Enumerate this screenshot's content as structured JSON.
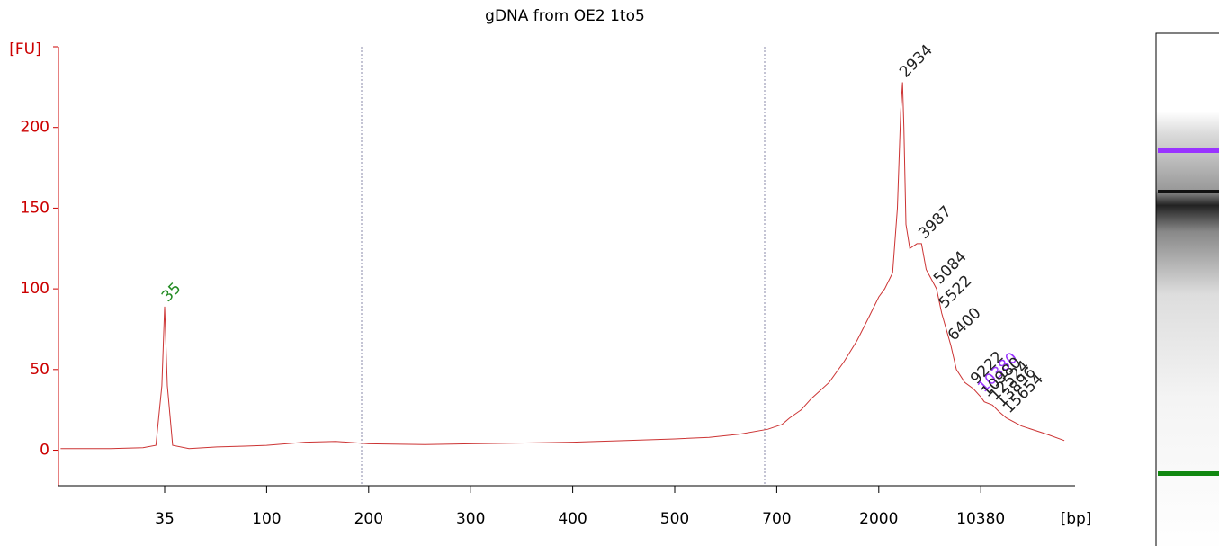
{
  "chart_data": {
    "type": "line",
    "title": "gDNA from OE2 1to5",
    "y_label": "[FU]",
    "x_label": "[bp]",
    "axis_color": "#cc0000",
    "xlim": [
      12,
      40000
    ],
    "ylim": [
      -22,
      250
    ],
    "xticks": [
      35,
      100,
      200,
      300,
      400,
      500,
      700,
      2000,
      10380
    ],
    "yticks": [
      0,
      50,
      100,
      150,
      200
    ],
    "series": [
      {
        "name": "gDNA from OE2 1to5",
        "color": "#cc3333",
        "x": [
          12,
          20,
          28,
          32,
          34,
          35,
          36,
          38,
          45,
          60,
          80,
          100,
          130,
          160,
          200,
          250,
          300,
          350,
          400,
          450,
          500,
          560,
          620,
          680,
          740,
          800,
          900,
          1000,
          1200,
          1400,
          1600,
          1800,
          2000,
          2200,
          2500,
          2700,
          2850,
          2934,
          3000,
          3100,
          3300,
          3700,
          3987,
          4300,
          5084,
          5522,
          6400,
          7000,
          8000,
          9222,
          10380,
          10980,
          12524,
          13896,
          15654,
          20000,
          30000,
          40000
        ],
        "values": [
          1,
          1,
          1.5,
          3,
          40,
          89,
          40,
          3,
          1,
          2,
          2.5,
          3,
          5,
          5.5,
          4,
          3.5,
          4,
          4.5,
          5,
          6,
          7,
          8,
          10,
          13,
          16,
          20,
          25,
          32,
          42,
          55,
          68,
          82,
          95,
          100,
          110,
          150,
          210,
          228,
          200,
          140,
          125,
          128,
          128,
          112,
          100,
          85,
          65,
          50,
          42,
          38,
          33,
          30,
          28,
          24,
          20,
          15,
          10,
          6
        ]
      }
    ],
    "peaks": [
      {
        "x": 35,
        "y": 89,
        "color": "#228b22"
      },
      {
        "x": 2934,
        "y": 228,
        "color": "#222222"
      },
      {
        "x": 3987,
        "y": 128,
        "color": "#222222"
      },
      {
        "x": 5084,
        "y": 100,
        "color": "#222222"
      },
      {
        "x": 5522,
        "y": 85,
        "color": "#222222"
      },
      {
        "x": 6400,
        "y": 65,
        "color": "#222222"
      },
      {
        "x": 9222,
        "y": 38,
        "color": "#222222"
      },
      {
        "x": 10380,
        "y": 33,
        "color": "#9933ff"
      },
      {
        "x": 10980,
        "y": 30,
        "color": "#222222"
      },
      {
        "x": 12524,
        "y": 28,
        "color": "#222222"
      },
      {
        "x": 13896,
        "y": 24,
        "color": "#222222"
      },
      {
        "x": 15654,
        "y": 20,
        "color": "#222222"
      }
    ]
  }
}
